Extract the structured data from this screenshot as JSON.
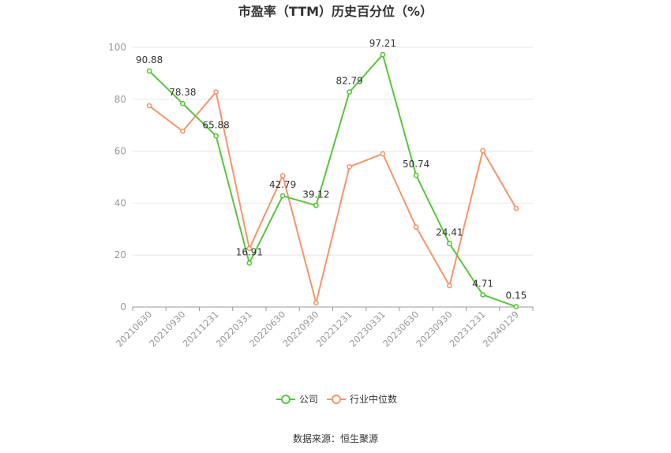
{
  "chart_data": {
    "type": "line",
    "title": "市盈率（TTM）历史百分位（%）",
    "categories": [
      "20210630",
      "20210930",
      "20211231",
      "20220331",
      "20220630",
      "20220930",
      "20221231",
      "20230331",
      "20230630",
      "20230930",
      "20231231",
      "20240129"
    ],
    "ylim": [
      0,
      100
    ],
    "yticks": [
      0,
      20,
      40,
      60,
      80,
      100
    ],
    "grid": true,
    "legend_position": "bottom",
    "series": [
      {
        "name": "公司",
        "color": "#5ac43f",
        "values": [
          90.88,
          78.38,
          65.88,
          16.91,
          42.79,
          39.12,
          82.79,
          97.21,
          50.74,
          24.41,
          4.71,
          0.15
        ],
        "labels": [
          "90.88",
          "78.38",
          "65.88",
          "16.91",
          "42.79",
          "39.12",
          "82.79",
          "97.21",
          "50.74",
          "24.41",
          "4.71",
          "0.15"
        ]
      },
      {
        "name": "行业中位数",
        "color": "#f4956a",
        "values": [
          77.5,
          67.7,
          82.8,
          22.5,
          50.6,
          1.6,
          54.0,
          59.0,
          30.8,
          8.2,
          60.2,
          38.0
        ]
      }
    ],
    "source": "数据来源：恒生聚源"
  }
}
